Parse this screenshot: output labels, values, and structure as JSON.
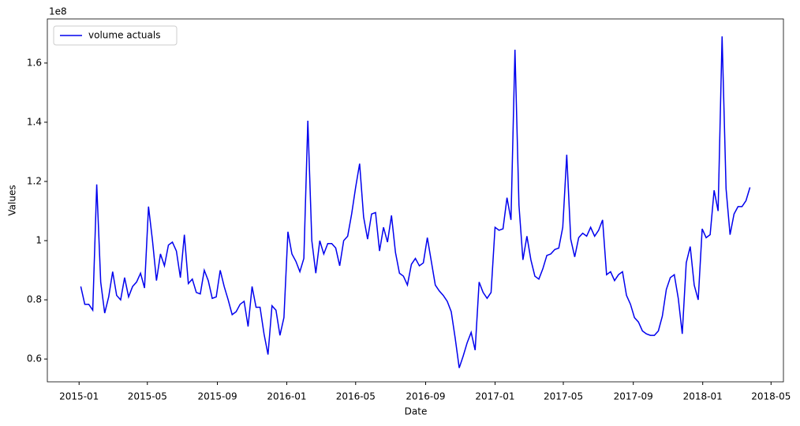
{
  "chart_data": {
    "type": "line",
    "xlabel": "Date",
    "ylabel": "Values",
    "y_offset_label": "1e8",
    "legend_loc": "upper left",
    "series": [
      {
        "name": "volume actuals",
        "color": "#0000ee",
        "values": [
          0.845,
          0.785,
          0.785,
          0.765,
          1.19,
          0.86,
          0.755,
          0.81,
          0.895,
          0.815,
          0.8,
          0.875,
          0.81,
          0.845,
          0.86,
          0.89,
          0.84,
          1.115,
          1.0,
          0.865,
          0.955,
          0.915,
          0.985,
          0.995,
          0.965,
          0.875,
          1.02,
          0.855,
          0.87,
          0.825,
          0.82,
          0.9,
          0.865,
          0.805,
          0.81,
          0.9,
          0.845,
          0.8,
          0.75,
          0.76,
          0.785,
          0.795,
          0.71,
          0.845,
          0.775,
          0.775,
          0.685,
          0.615,
          0.78,
          0.765,
          0.68,
          0.74,
          1.03,
          0.955,
          0.93,
          0.895,
          0.94,
          1.405,
          1.0,
          0.89,
          1.0,
          0.955,
          0.99,
          0.99,
          0.975,
          0.915,
          1.0,
          1.015,
          1.09,
          1.18,
          1.26,
          1.08,
          1.005,
          1.09,
          1.095,
          0.965,
          1.045,
          0.995,
          1.085,
          0.96,
          0.89,
          0.88,
          0.85,
          0.92,
          0.94,
          0.915,
          0.925,
          1.01,
          0.93,
          0.85,
          0.83,
          0.815,
          0.795,
          0.76,
          0.67,
          0.57,
          0.61,
          0.655,
          0.69,
          0.63,
          0.86,
          0.825,
          0.805,
          0.825,
          1.045,
          1.035,
          1.04,
          1.145,
          1.07,
          1.645,
          1.12,
          0.935,
          1.015,
          0.935,
          0.88,
          0.87,
          0.905,
          0.95,
          0.955,
          0.97,
          0.975,
          1.045,
          1.29,
          1.005,
          0.945,
          1.01,
          1.025,
          1.015,
          1.045,
          1.015,
          1.035,
          1.07,
          0.885,
          0.895,
          0.865,
          0.885,
          0.895,
          0.815,
          0.785,
          0.74,
          0.725,
          0.695,
          0.685,
          0.68,
          0.68,
          0.695,
          0.745,
          0.835,
          0.875,
          0.885,
          0.805,
          0.685,
          0.925,
          0.98,
          0.85,
          0.8,
          1.04,
          1.01,
          1.02,
          1.17,
          1.1,
          1.69,
          1.175,
          1.02,
          1.09,
          1.115,
          1.115,
          1.135,
          1.18
        ]
      }
    ],
    "xlim": [
      -8.4,
      176.4
    ],
    "xticks": [
      {
        "value": -0.43,
        "label": "2015-01"
      },
      {
        "value": 16.71,
        "label": "2015-05"
      },
      {
        "value": 34.29,
        "label": "2015-09"
      },
      {
        "value": 51.71,
        "label": "2016-01"
      },
      {
        "value": 69.0,
        "label": "2016-05"
      },
      {
        "value": 86.57,
        "label": "2016-09"
      },
      {
        "value": 104.0,
        "label": "2017-01"
      },
      {
        "value": 121.14,
        "label": "2017-05"
      },
      {
        "value": 138.71,
        "label": "2017-09"
      },
      {
        "value": 156.14,
        "label": "2018-01"
      },
      {
        "value": 173.29,
        "label": "2018-05"
      }
    ],
    "ylim": [
      0.523,
      1.749
    ],
    "yticks": [
      0.6,
      0.8,
      1.0,
      1.2,
      1.4,
      1.6
    ]
  }
}
